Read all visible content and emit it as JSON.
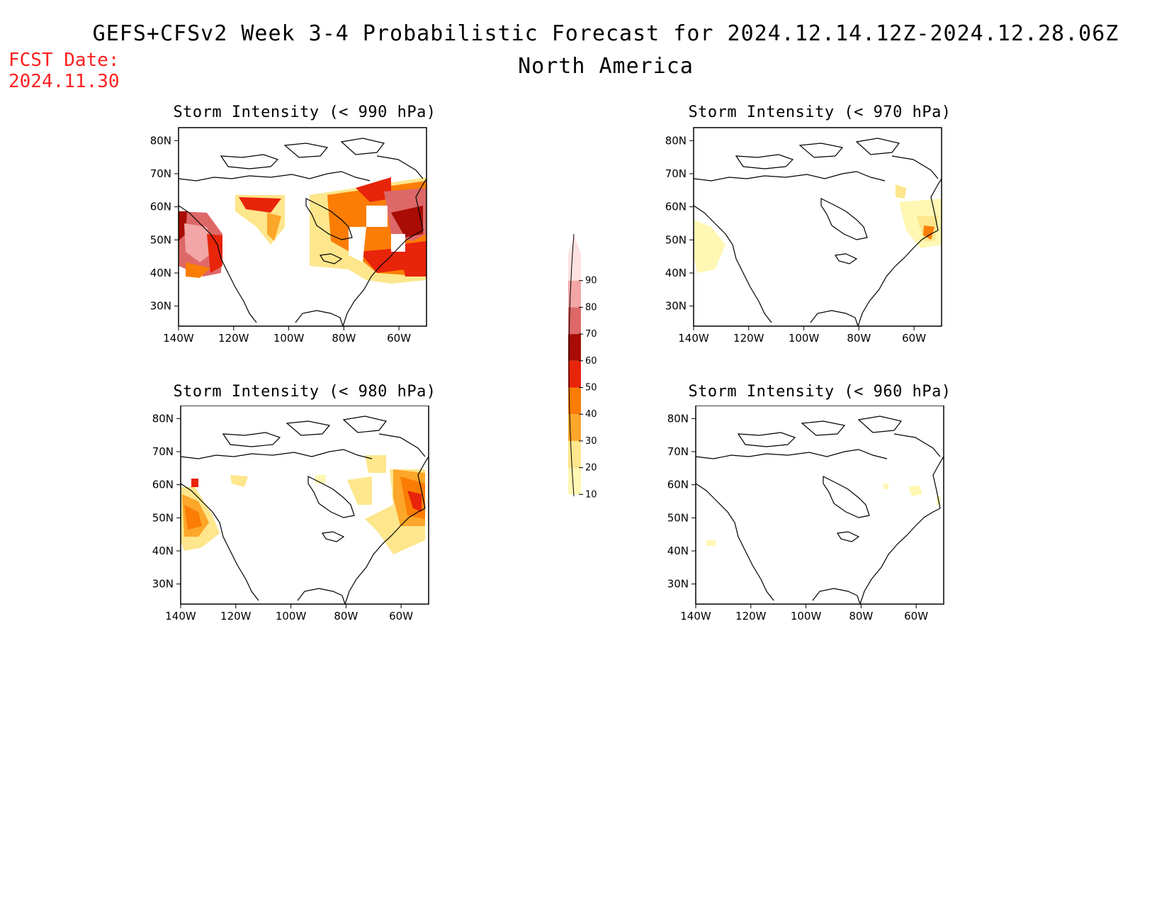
{
  "header": {
    "title": "GEFS+CFSv2 Week 3-4 Probabilistic Forecast for 2024.12.14.12Z-2024.12.28.06Z",
    "subtitle": "North America",
    "fcst_label": "FCST Date:",
    "fcst_date": "2024.11.30"
  },
  "axes": {
    "lat_ticks": [
      "80N",
      "70N",
      "60N",
      "50N",
      "40N",
      "30N"
    ],
    "lon_ticks": [
      "140W",
      "120W",
      "100W",
      "80W",
      "60W"
    ]
  },
  "panels": [
    {
      "title": "Storm Intensity (< 990 hPa)",
      "threshold_hPa": 990
    },
    {
      "title": "Storm Intensity (< 970 hPa)",
      "threshold_hPa": 970
    },
    {
      "title": "Storm Intensity (< 980 hPa)",
      "threshold_hPa": 980
    },
    {
      "title": "Storm Intensity (< 960 hPa)",
      "threshold_hPa": 960
    }
  ],
  "colorbar": {
    "levels": [
      "10",
      "20",
      "30",
      "40",
      "50",
      "60",
      "70",
      "80",
      "90"
    ],
    "colors": [
      "#fff7b3",
      "#fde68c",
      "#fca62a",
      "#fb7d05",
      "#e8240a",
      "#a80c04",
      "#de6868",
      "#f2a6a6",
      "#fde1e1"
    ]
  }
}
